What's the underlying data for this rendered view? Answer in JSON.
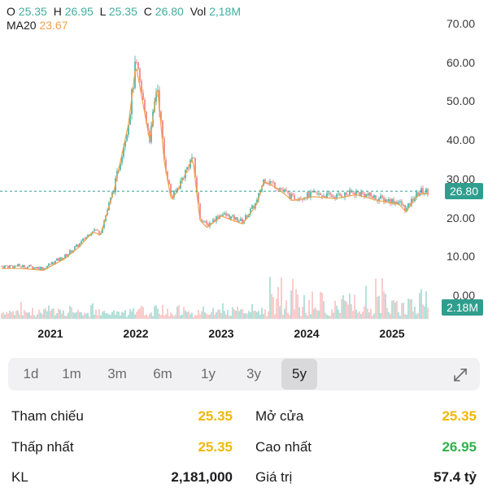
{
  "ohlc": {
    "o_label": "O",
    "o": "25.35",
    "h_label": "H",
    "h": "26.95",
    "l_label": "L",
    "l": "25.35",
    "c_label": "C",
    "c": "26.80",
    "vol_label": "Vol",
    "vol": "2,18M"
  },
  "ma": {
    "label": "MA20",
    "value": "23.67"
  },
  "colors": {
    "up": "#3fae9e",
    "down": "#f07b7b",
    "ma": "#f0a24a",
    "badge": "#2f9e8e",
    "ref": "#f2b705",
    "high": "#2fb24a"
  },
  "chart_data": {
    "type": "candlestick",
    "y_ticks": [
      "70.00",
      "60.00",
      "50.00",
      "40.00",
      "30.00",
      "20.00",
      "10.00",
      "0.00"
    ],
    "ylim": [
      0,
      70
    ],
    "x_ticks": [
      "2021",
      "2022",
      "2023",
      "2024",
      "2025"
    ],
    "current_price": 26.8,
    "current_price_label": "26.80",
    "current_volume_label": "2.18M",
    "price_path": [
      [
        "2020-09",
        7.5
      ],
      [
        "2020-12",
        7.0
      ],
      [
        "2021-03",
        10.0
      ],
      [
        "2021-05",
        13.0
      ],
      [
        "2021-07",
        17.0
      ],
      [
        "2021-08",
        16.0
      ],
      [
        "2021-10",
        28.0
      ],
      [
        "2021-12",
        45.0
      ],
      [
        "2022-01",
        60.0
      ],
      [
        "2022-02",
        50.0
      ],
      [
        "2022-03",
        40.0
      ],
      [
        "2022-04",
        55.0
      ],
      [
        "2022-05",
        35.0
      ],
      [
        "2022-06",
        25.0
      ],
      [
        "2022-07",
        28.0
      ],
      [
        "2022-09",
        36.0
      ],
      [
        "2022-10",
        20.0
      ],
      [
        "2022-11",
        18.0
      ],
      [
        "2023-01",
        21.0
      ],
      [
        "2023-04",
        19.0
      ],
      [
        "2023-06",
        24.0
      ],
      [
        "2023-07",
        30.0
      ],
      [
        "2023-09",
        28.0
      ],
      [
        "2023-11",
        25.0
      ],
      [
        "2024-02",
        26.0
      ],
      [
        "2024-05",
        25.5
      ],
      [
        "2024-08",
        26.5
      ],
      [
        "2024-11",
        25.0
      ],
      [
        "2025-02",
        24.0
      ],
      [
        "2025-03",
        22.0
      ],
      [
        "2025-04",
        25.0
      ],
      [
        "2025-05",
        26.8
      ]
    ],
    "volume_note": "volume bars drawn at bottom of chart"
  },
  "tabs": [
    {
      "label": "1d",
      "active": false
    },
    {
      "label": "1m",
      "active": false
    },
    {
      "label": "3m",
      "active": false
    },
    {
      "label": "6m",
      "active": false
    },
    {
      "label": "1y",
      "active": false
    },
    {
      "label": "3y",
      "active": false
    },
    {
      "label": "5y",
      "active": true
    }
  ],
  "stats": {
    "tham_chieu": {
      "label": "Tham chiếu",
      "value": "25.35"
    },
    "mo_cua": {
      "label": "Mở cửa",
      "value": "25.35"
    },
    "thap_nhat": {
      "label": "Thấp nhất",
      "value": "25.35"
    },
    "cao_nhat": {
      "label": "Cao nhất",
      "value": "26.95"
    },
    "kl": {
      "label": "KL",
      "value": "2,181,000"
    },
    "gia_tri": {
      "label": "Giá trị",
      "value": "57.4 tỷ"
    }
  },
  "icons": {
    "expand": "expand-icon"
  }
}
